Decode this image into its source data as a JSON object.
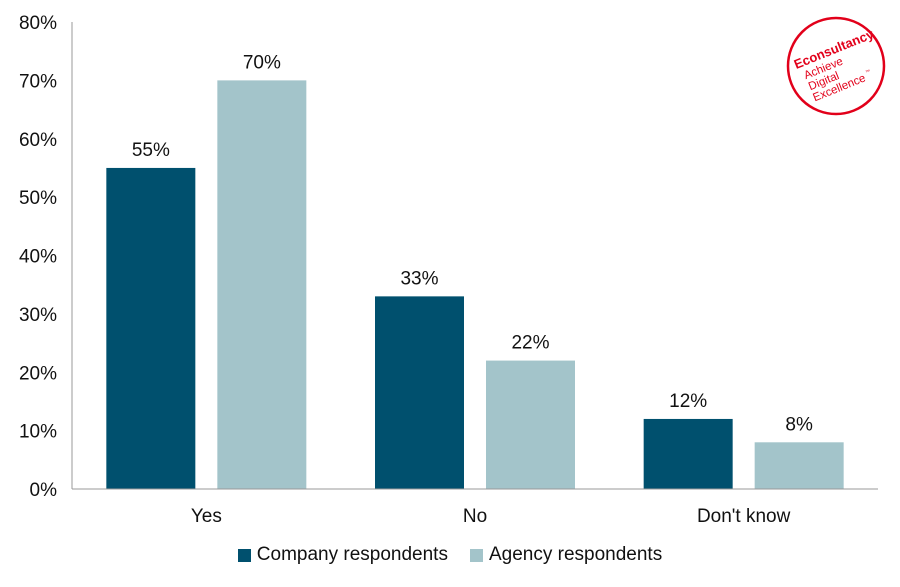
{
  "chart_data": {
    "type": "bar",
    "categories": [
      "Yes",
      "No",
      "Don't know"
    ],
    "series": [
      {
        "name": "Company respondents",
        "values": [
          55,
          33,
          12
        ],
        "color": "#00506e",
        "labels": [
          "55%",
          "33%",
          "12%"
        ]
      },
      {
        "name": "Agency respondents",
        "values": [
          70,
          22,
          8
        ],
        "color": "#a3c4ca",
        "labels": [
          "70%",
          "22%",
          "8%"
        ]
      }
    ],
    "ylim": [
      0,
      80
    ],
    "yticks": [
      "0%",
      "10%",
      "20%",
      "30%",
      "40%",
      "50%",
      "60%",
      "70%",
      "80%"
    ],
    "ytick_step": 10,
    "legend_position": "bottom",
    "grid": false
  },
  "logo": {
    "brand": "Econsultancy",
    "tagline_1": "Achieve",
    "tagline_2": "Digital",
    "tagline_3": "Excellence",
    "trademark": "™",
    "color": "#e2001a"
  }
}
